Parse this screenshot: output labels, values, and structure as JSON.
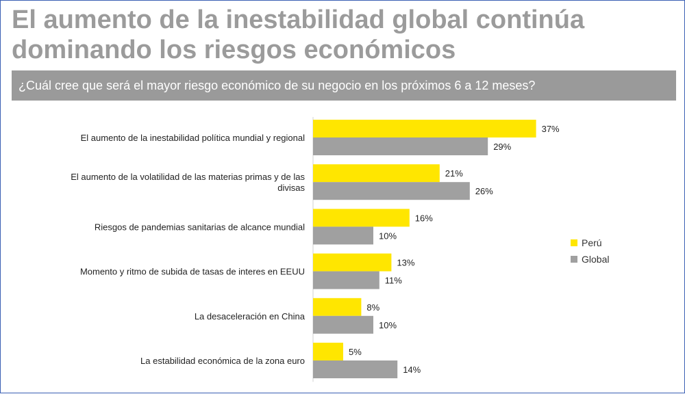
{
  "slide": {
    "title": "El aumento de la inestabilidad global continúa dominando los riesgos económicos",
    "question": "¿Cuál cree que será el mayor riesgo económico de su negocio en los próximos 6 a 12 meses?"
  },
  "colors": {
    "peru": "#ffe600",
    "global": "#a0a0a0",
    "title": "#9b9b9b",
    "question_bar": "#9a9a9a"
  },
  "chart_data": {
    "type": "bar",
    "orientation": "horizontal",
    "categories": [
      "El aumento de la inestabilidad política mundial y regional",
      "El aumento de la volatilidad de las materias primas y de las divisas",
      "Riesgos de pandemias sanitarias de alcance mundial",
      "Momento y ritmo de subida de tasas de interes en EEUU",
      "La desaceleración en China",
      "La estabilidad económica de la zona euro"
    ],
    "series": [
      {
        "name": "Perú",
        "values": [
          37,
          21,
          16,
          13,
          8,
          5
        ],
        "labels": [
          "37%",
          "21%",
          "16%",
          "13%",
          "8%",
          "5%"
        ]
      },
      {
        "name": "Global",
        "values": [
          29,
          26,
          10,
          11,
          10,
          14
        ],
        "labels": [
          "29%",
          "26%",
          "10%",
          "11%",
          "10%",
          "14%"
        ]
      }
    ],
    "unit": "%",
    "xlim": [
      0,
      40
    ],
    "legend_position": "right",
    "grid": false
  }
}
